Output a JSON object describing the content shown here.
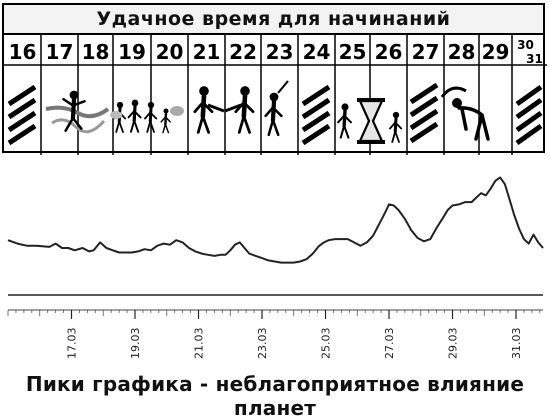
{
  "calendar": {
    "title": "Удачное время для начинаний",
    "days": [
      {
        "label": "16",
        "icon": "hatch-icon"
      },
      {
        "label": "17",
        "icon": "runner-finish-icon"
      },
      {
        "label": "18",
        "icon": "runner-finish-icon"
      },
      {
        "label": "19",
        "icon": "family-group-icon"
      },
      {
        "label": "20",
        "icon": "family-group-icon"
      },
      {
        "label": "21",
        "icon": "handshake-icon"
      },
      {
        "label": "22",
        "icon": "handshake-icon"
      },
      {
        "label": "23",
        "icon": "thinking-figure-icon"
      },
      {
        "label": "24",
        "icon": "hatch-icon"
      },
      {
        "label": "25",
        "icon": "hourglass-worried-icon"
      },
      {
        "label": "26",
        "icon": "hourglass-worried-icon"
      },
      {
        "label": "27",
        "icon": "hatch-bowing-icon"
      },
      {
        "label": "28",
        "icon": "bowing-figure-icon"
      },
      {
        "label": "29",
        "icon": "empty"
      },
      {
        "label": "30\n31",
        "icon": "hatch-icon"
      }
    ]
  },
  "chart_data": {
    "type": "line",
    "x_ticks": [
      "17.03",
      "19.03",
      "21.03",
      "23.03",
      "25.03",
      "27.03",
      "29.03",
      "31.03"
    ],
    "x_range": [
      15.0,
      31.85
    ],
    "y_range": [
      0,
      100
    ],
    "baseline": 0,
    "grid": false,
    "series": [
      {
        "x": [
          15.0,
          15.3,
          15.6,
          15.9,
          16.3,
          16.5,
          16.7,
          16.9,
          17.1,
          17.35,
          17.55,
          17.7,
          17.9,
          18.1,
          18.3,
          18.5,
          18.7,
          18.9,
          19.1,
          19.3,
          19.5,
          19.7,
          19.9,
          20.1,
          20.3,
          20.5,
          20.7,
          20.9,
          21.1,
          21.3,
          21.5,
          21.7,
          21.85,
          22.0,
          22.15,
          22.3,
          22.45,
          22.6,
          22.8,
          23.0,
          23.2,
          23.4,
          23.6,
          23.8,
          24.0,
          24.2,
          24.4,
          24.6,
          24.8,
          24.95,
          25.1,
          25.3,
          25.5,
          25.7,
          25.9,
          26.1,
          26.3,
          26.5,
          26.7,
          26.85,
          27.0,
          27.15,
          27.3,
          27.5,
          27.7,
          27.9,
          28.1,
          28.3,
          28.5,
          28.7,
          28.85,
          29.0,
          29.2,
          29.4,
          29.6,
          29.75,
          29.9,
          30.05,
          30.2,
          30.35,
          30.5,
          30.65,
          30.8,
          30.95,
          31.1,
          31.25,
          31.4,
          31.55,
          31.7,
          31.85
        ],
        "y": [
          40,
          37,
          35,
          35,
          34,
          37,
          33,
          33,
          31,
          33,
          30,
          31,
          38,
          33,
          31,
          29,
          29,
          29,
          30,
          32,
          31,
          35,
          37,
          36,
          40,
          38,
          33,
          30,
          28,
          27,
          26,
          27,
          27,
          31,
          36,
          38,
          33,
          28,
          26,
          24,
          22,
          21,
          20,
          20,
          20,
          21,
          23,
          28,
          35,
          38,
          40,
          41,
          41,
          41,
          38,
          35,
          38,
          44,
          55,
          63,
          72,
          71,
          67,
          59,
          49,
          42,
          39,
          41,
          51,
          60,
          67,
          71,
          72,
          74,
          74,
          78,
          82,
          80,
          86,
          93,
          96,
          90,
          76,
          62,
          50,
          41,
          37,
          45,
          38,
          33
        ]
      }
    ]
  },
  "caption": "Пики графика - неблагоприятное влияние планет"
}
